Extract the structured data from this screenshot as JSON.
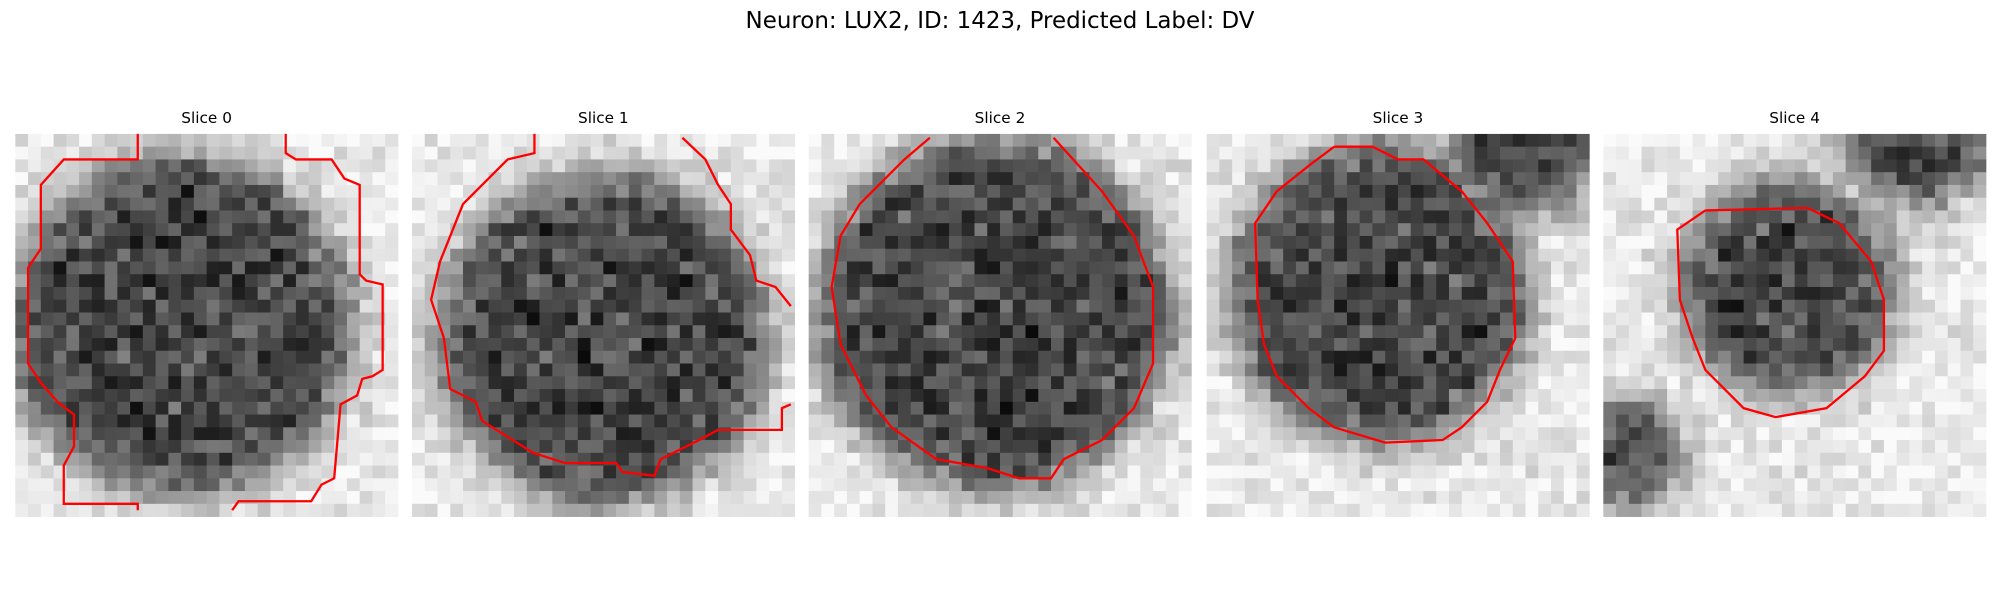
{
  "title": "Neuron: LUX2, ID: 1423, Predicted Label: DV",
  "panels": [
    {
      "title": "Slice 0"
    },
    {
      "title": "Slice 1"
    },
    {
      "title": "Slice 2"
    },
    {
      "title": "Slice 3"
    },
    {
      "title": "Slice 4"
    }
  ]
}
